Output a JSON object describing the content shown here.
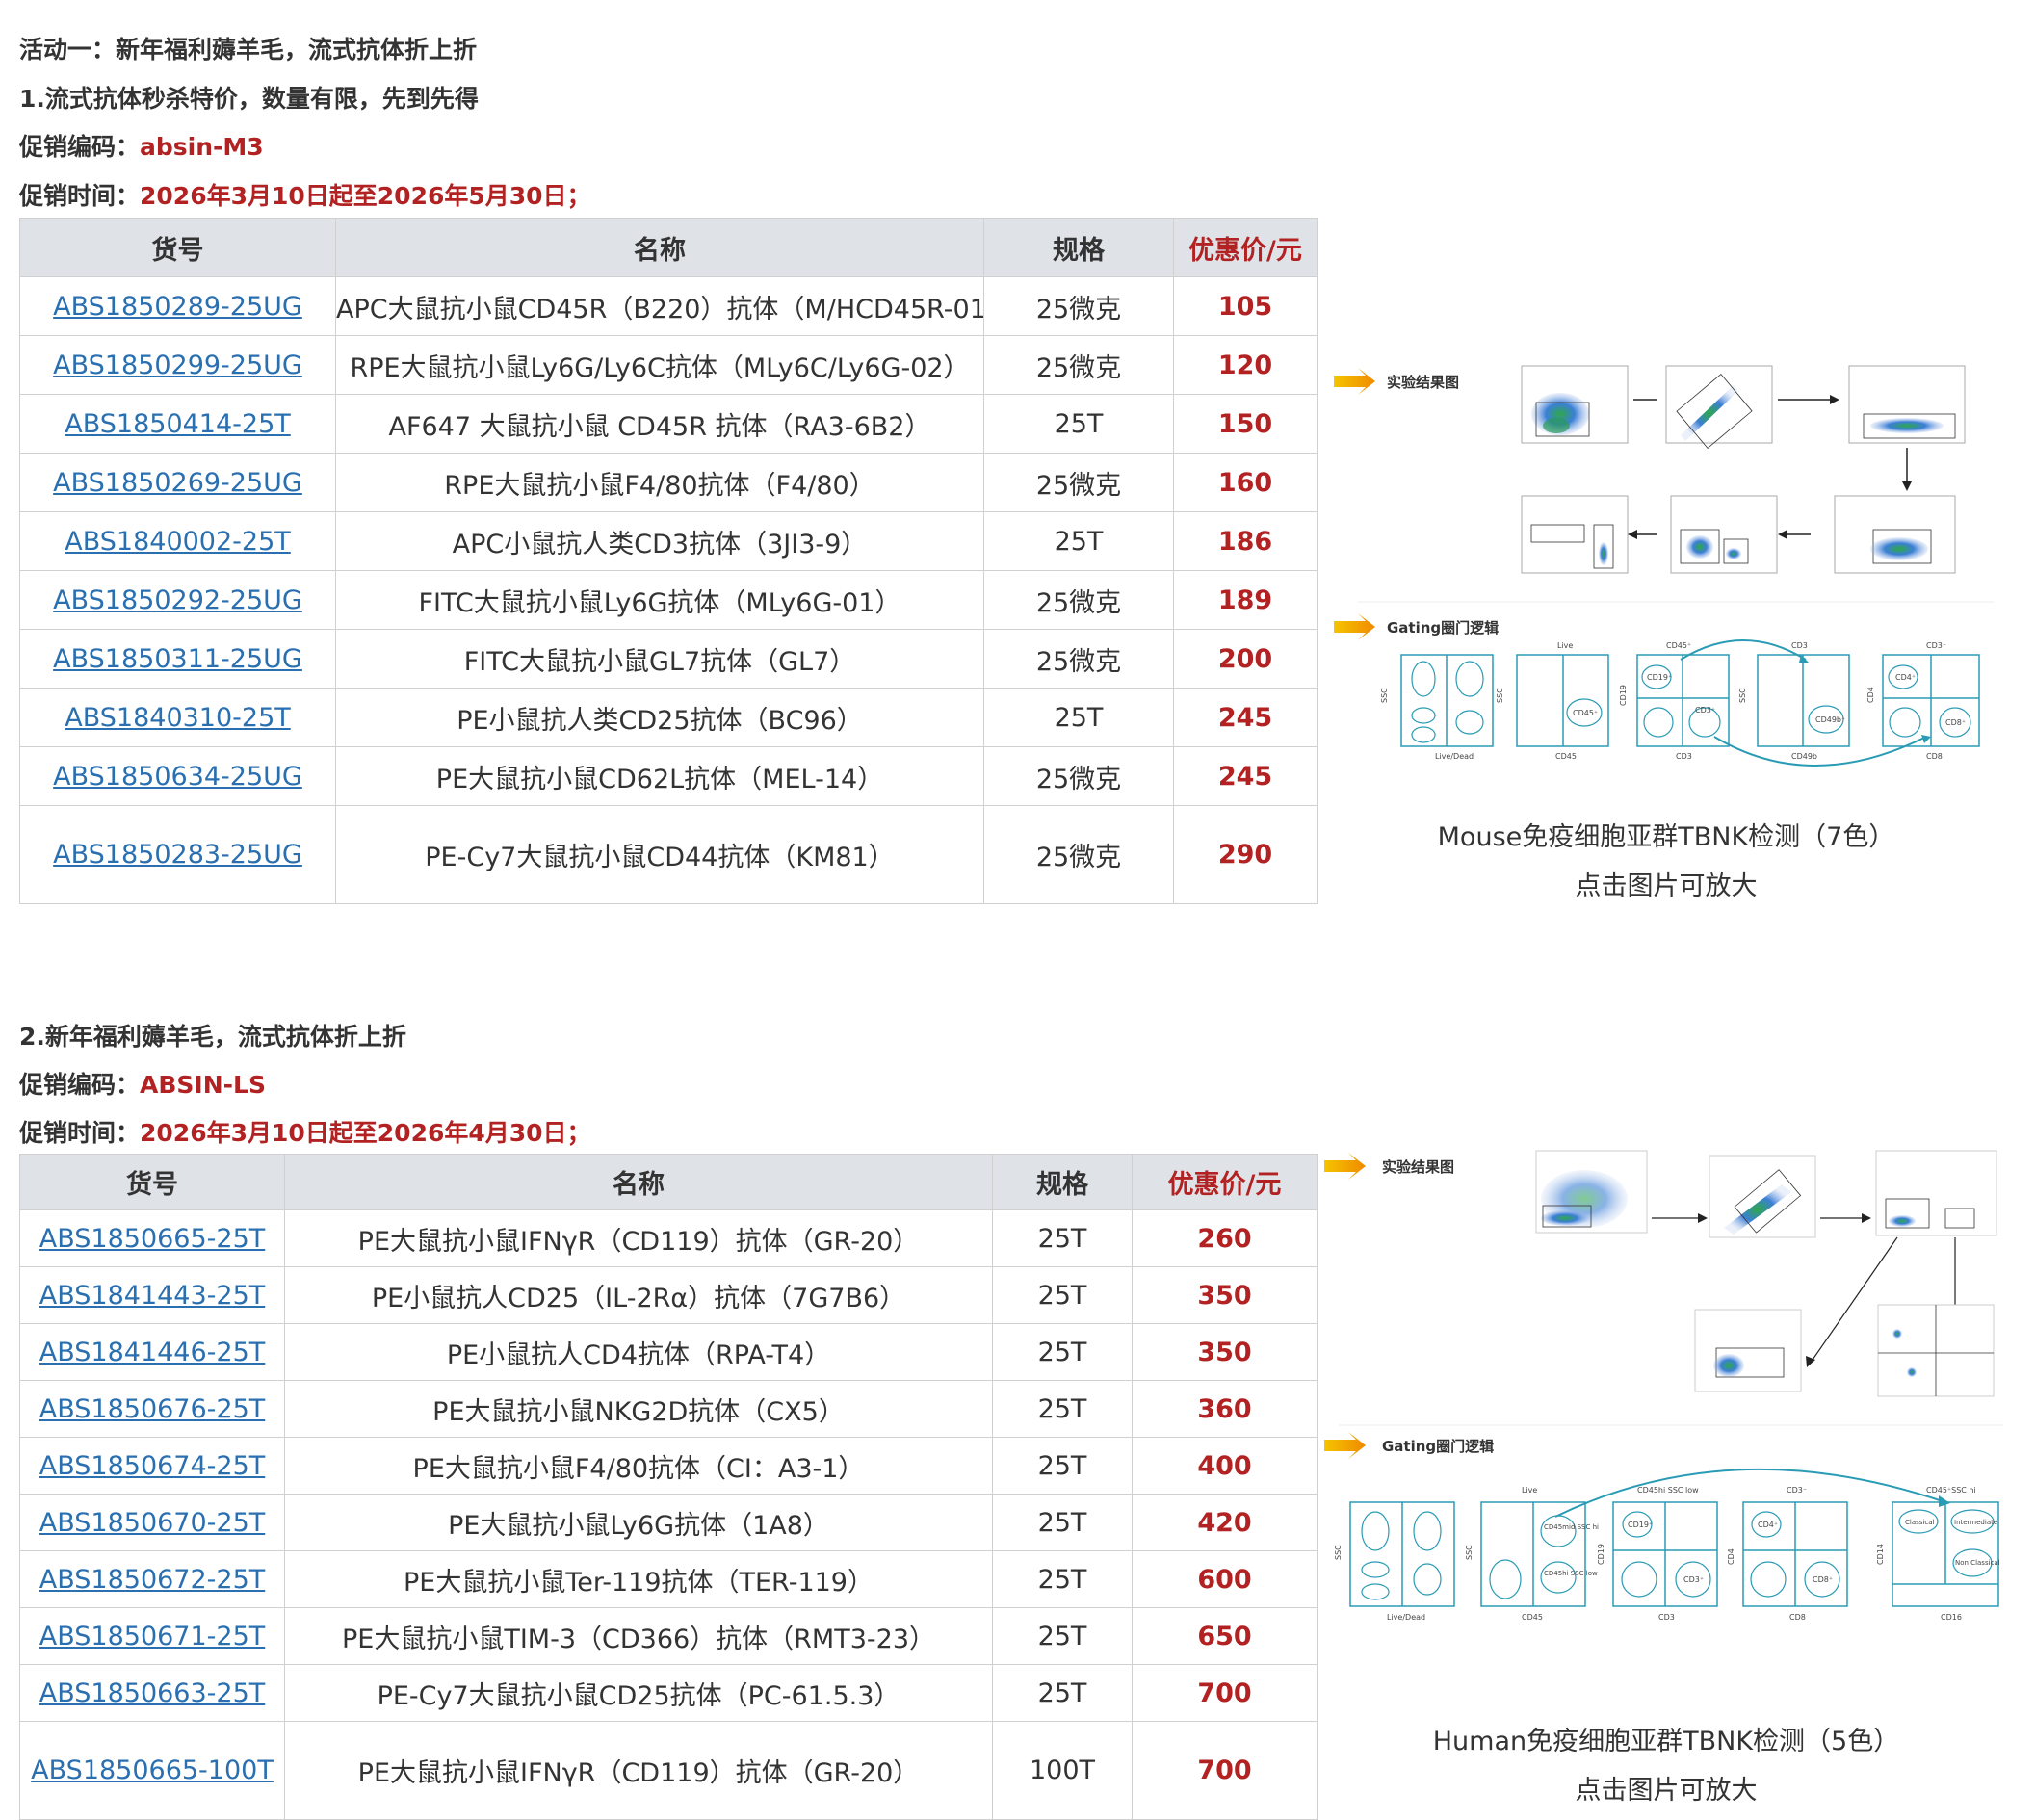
{
  "activity_title": "活动一：新年福利薅羊毛，流式抗体折上折",
  "section1": {
    "title": "1.流式抗体秒杀特价，数量有限，先到先得",
    "code_label": "促销编码：",
    "code_value": "absin-M3",
    "time_label": "促销时间：",
    "time_value": "2026年3月10日起至2026年5月30日；",
    "headers": [
      "货号",
      "名称",
      "规格",
      "优惠价/元"
    ],
    "rows": [
      {
        "sku": "ABS1850289-25UG",
        "name": "APC大鼠抗小鼠CD45R（B220）抗体（M/HCD45R-01）",
        "spec": "25微克",
        "price": "105"
      },
      {
        "sku": "ABS1850299-25UG",
        "name": "RPE大鼠抗小鼠Ly6G/Ly6C抗体（MLy6C/Ly6G-02）",
        "spec": "25微克",
        "price": "120"
      },
      {
        "sku": "ABS1850414-25T",
        "name": "AF647 大鼠抗小鼠 CD45R 抗体（RA3-6B2）",
        "spec": "25T",
        "price": "150"
      },
      {
        "sku": "ABS1850269-25UG",
        "name": "RPE大鼠抗小鼠F4/80抗体（F4/80）",
        "spec": "25微克",
        "price": "160"
      },
      {
        "sku": "ABS1840002-25T",
        "name": "APC小鼠抗人类CD3抗体（3JI3-9）",
        "spec": "25T",
        "price": "186"
      },
      {
        "sku": "ABS1850292-25UG",
        "name": "FITC大鼠抗小鼠Ly6G抗体（MLy6G-01）",
        "spec": "25微克",
        "price": "189"
      },
      {
        "sku": "ABS1850311-25UG",
        "name": "FITC大鼠抗小鼠GL7抗体（GL7）",
        "spec": "25微克",
        "price": "200"
      },
      {
        "sku": "ABS1840310-25T",
        "name": "PE小鼠抗人类CD25抗体（BC96）",
        "spec": "25T",
        "price": "245"
      },
      {
        "sku": "ABS1850634-25UG",
        "name": "PE大鼠抗小鼠CD62L抗体（MEL-14）",
        "spec": "25微克",
        "price": "245"
      },
      {
        "sku": "ABS1850283-25UG",
        "name": "PE-Cy7大鼠抗小鼠CD44抗体（KM81）",
        "spec": "25微克",
        "price": "290"
      }
    ],
    "figure": {
      "results_label": "实验结果图",
      "gating_label": "Gating圈门逻辑",
      "gates": [
        "Live",
        "CD45⁺",
        "CD3",
        "CD3⁺",
        "CD19⁺",
        "CD45⁺",
        "CD3⁻",
        "CD49b⁺",
        "CD4⁺",
        "CD8⁺"
      ],
      "axes": [
        "SSC",
        "Live/Dead",
        "SSC",
        "CD45",
        "CD19",
        "CD3",
        "SSC",
        "CD49b",
        "CD4",
        "CD8"
      ],
      "caption1": "Mouse免疫细胞亚群TBNK检测（7色）",
      "caption2": "点击图片可放大"
    }
  },
  "section2": {
    "title": "2.新年福利薅羊毛，流式抗体折上折",
    "code_label": "促销编码：",
    "code_value": "ABSIN-LS",
    "time_label": "促销时间：",
    "time_value": "2026年3月10日起至2026年4月30日；",
    "headers": [
      "货号",
      "名称",
      "规格",
      "优惠价/元"
    ],
    "rows": [
      {
        "sku": "ABS1850665-25T",
        "name": "PE大鼠抗小鼠IFNγR（CD119）抗体（GR-20）",
        "spec": "25T",
        "price": "260"
      },
      {
        "sku": "ABS1841443-25T",
        "name": "PE小鼠抗人CD25（IL-2Rα）抗体（7G7B6）",
        "spec": "25T",
        "price": "350"
      },
      {
        "sku": "ABS1841446-25T",
        "name": "PE小鼠抗人CD4抗体（RPA-T4）",
        "spec": "25T",
        "price": "350"
      },
      {
        "sku": "ABS1850676-25T",
        "name": "PE大鼠抗小鼠NKG2D抗体（CX5）",
        "spec": "25T",
        "price": "360"
      },
      {
        "sku": "ABS1850674-25T",
        "name": "PE大鼠抗小鼠F4/80抗体（CI：A3-1）",
        "spec": "25T",
        "price": "400"
      },
      {
        "sku": "ABS1850670-25T",
        "name": "PE大鼠抗小鼠Ly6G抗体（1A8）",
        "spec": "25T",
        "price": "420"
      },
      {
        "sku": "ABS1850672-25T",
        "name": "PE大鼠抗小鼠Ter-119抗体（TER-119）",
        "spec": "25T",
        "price": "600"
      },
      {
        "sku": "ABS1850671-25T",
        "name": "PE大鼠抗小鼠TIM-3（CD366）抗体（RMT3-23）",
        "spec": "25T",
        "price": "650"
      },
      {
        "sku": "ABS1850663-25T",
        "name": "PE-Cy7大鼠抗小鼠CD25抗体（PC-61.5.3）",
        "spec": "25T",
        "price": "700"
      },
      {
        "sku": "ABS1850665-100T",
        "name": "PE大鼠抗小鼠IFNγR（CD119）抗体（GR-20）",
        "spec": "100T",
        "price": "700"
      }
    ],
    "figure": {
      "results_label": "实验结果图",
      "gating_label": "Gating圈门逻辑",
      "gates": [
        "Live",
        "CD45hi SSC low",
        "CD3⁻",
        "CD45⁺SSC hi",
        "CD45mid SSC hi",
        "CD45hi SSC low",
        "CD19⁺",
        "CD3⁺",
        "CD4⁺",
        "CD8⁺",
        "Classical",
        "Intermediate",
        "Non Classical"
      ],
      "axes": [
        "SSC",
        "Live/Dead",
        "SSC",
        "CD45",
        "CD19",
        "CD3",
        "CD4",
        "CD8",
        "CD14",
        "CD16"
      ],
      "caption1": "Human免疫细胞亚群TBNK检测（5色）",
      "caption2": "点击图片可放大"
    }
  }
}
